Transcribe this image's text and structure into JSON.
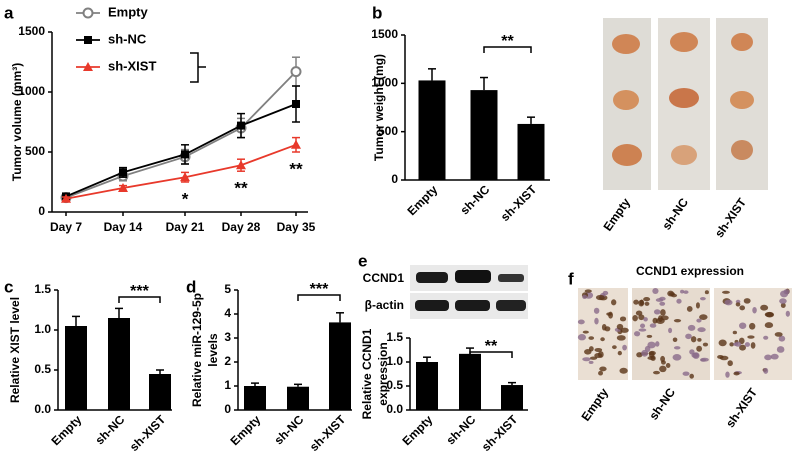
{
  "chart_data": [
    {
      "type": "line",
      "panel": "a",
      "ylabel": [
        "Tumor volume (mm³)"
      ],
      "categories": [
        "Day 7",
        "Day 14",
        "Day 21",
        "Day 28",
        "Day 35"
      ],
      "series": [
        {
          "name": "Empty",
          "color": "#808080",
          "marker": "circle",
          "values": [
            120,
            300,
            460,
            700,
            1170
          ],
          "errors": [
            20,
            40,
            60,
            80,
            120
          ]
        },
        {
          "name": "sh-NC",
          "color": "#000000",
          "marker": "square",
          "values": [
            130,
            330,
            480,
            720,
            900
          ],
          "errors": [
            20,
            40,
            80,
            100,
            150
          ]
        },
        {
          "name": "sh-XIST",
          "color": "#e8392b",
          "marker": "triangle",
          "values": [
            110,
            200,
            290,
            390,
            560
          ],
          "errors": [
            15,
            20,
            40,
            50,
            60
          ]
        }
      ],
      "ylim": [
        0,
        1500
      ],
      "yticks": [
        0,
        500,
        1000,
        1500
      ],
      "annotations": [
        {
          "x": "Day 21",
          "text": "*"
        },
        {
          "x": "Day 28",
          "text": "**"
        },
        {
          "x": "Day 35",
          "text": "**"
        }
      ]
    },
    {
      "type": "bar",
      "panel": "b",
      "ylabel": [
        "Tumor weight (mg)"
      ],
      "categories": [
        "Empty",
        "sh-NC",
        "sh-XIST"
      ],
      "values": [
        1030,
        930,
        580
      ],
      "errors": [
        120,
        130,
        70
      ],
      "color": "#000000",
      "ylim": [
        0,
        1500
      ],
      "yticks": [
        0,
        500,
        1000,
        1500
      ],
      "annotation": "**"
    },
    {
      "type": "bar",
      "panel": "c",
      "ylabel": [
        "Relative XIST level"
      ],
      "categories": [
        "Empty",
        "sh-NC",
        "sh-XIST"
      ],
      "values": [
        1.05,
        1.15,
        0.45
      ],
      "errors": [
        0.12,
        0.12,
        0.05
      ],
      "color": "#000000",
      "ylim": [
        0,
        1.5
      ],
      "yticks": [
        {
          "value": 0,
          "label": "0.0"
        },
        0.5,
        {
          "value": 1,
          "label": "1.0"
        },
        1.5
      ],
      "annotation": "***"
    },
    {
      "type": "bar",
      "panel": "d",
      "ylabel": [
        "Relative miR-129-5p",
        "levels"
      ],
      "categories": [
        "Empty",
        "sh-NC",
        "sh-XIST"
      ],
      "values": [
        1.0,
        0.97,
        3.65
      ],
      "errors": [
        0.12,
        0.1,
        0.4
      ],
      "color": "#000000",
      "ylim": [
        0,
        5
      ],
      "yticks": [
        0,
        1,
        2,
        3,
        4,
        5
      ],
      "annotation": "***"
    },
    {
      "type": "bar",
      "panel": "e",
      "ylabel": [
        "Relative CCND1",
        "expression"
      ],
      "categories": [
        "Empty",
        "sh-NC",
        "sh-XIST"
      ],
      "values": [
        1.0,
        1.17,
        0.52
      ],
      "errors": [
        0.1,
        0.12,
        0.05
      ],
      "color": "#000000",
      "ylim": [
        0,
        1.5
      ],
      "yticks": [
        {
          "value": 0,
          "label": "0.0"
        },
        0.5,
        {
          "value": 1,
          "label": "1.0"
        },
        1.5
      ],
      "annotation": "**"
    }
  ],
  "photo": {
    "labels": [
      "Empty",
      "sh-NC",
      "sh-XIST"
    ]
  },
  "blot": {
    "labels": [
      "CCND1",
      "β-actin"
    ]
  },
  "ihc": {
    "panel": "f",
    "title": "CCND1 expression",
    "labels": [
      "Empty",
      "sh-NC",
      "sh-XIST"
    ]
  }
}
